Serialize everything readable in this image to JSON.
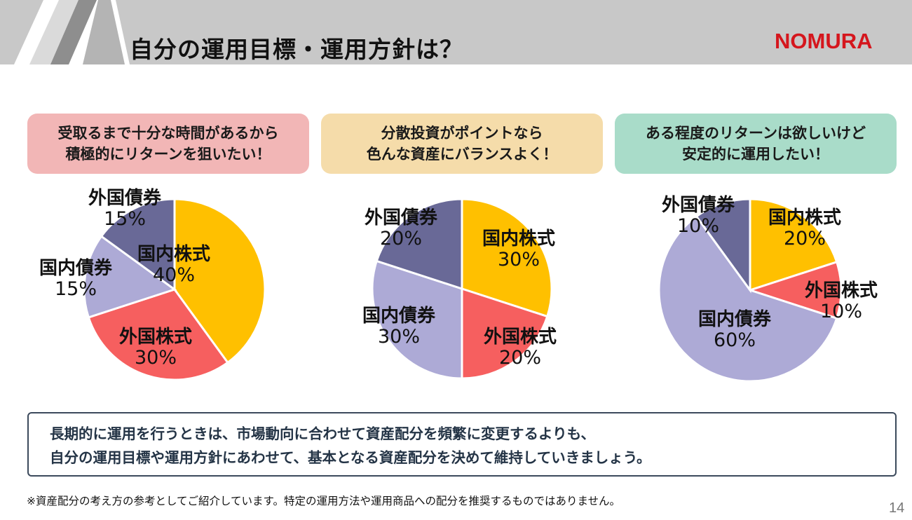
{
  "header": {
    "title": "自分の運用目標・運用方針は？",
    "logo": "NOMURA",
    "logo_color": "#d5161d",
    "bar_color": "#c8c8c8"
  },
  "colors": {
    "domestic_stock": "#ffc000",
    "foreign_stock": "#f65f5f",
    "domestic_bond": "#adaad6",
    "foreign_bond": "#696997"
  },
  "profiles": [
    {
      "line1": "受取るまで十分な時間があるから",
      "line2": "積極的にリターンを狙いたい！",
      "bg": "#f2b6b6",
      "slices": [
        {
          "key": "domestic_stock",
          "name": "国内株式",
          "pct": "40%",
          "value": 40
        },
        {
          "key": "foreign_stock",
          "name": "外国株式",
          "pct": "30%",
          "value": 30
        },
        {
          "key": "domestic_bond",
          "name": "国内債券",
          "pct": "15%",
          "value": 15
        },
        {
          "key": "foreign_bond",
          "name": "外国債券",
          "pct": "15%",
          "value": 15
        }
      ]
    },
    {
      "line1": "分散投資がポイントなら",
      "line2": "色んな資産にバランスよく！",
      "bg": "#f5dcaa",
      "slices": [
        {
          "key": "domestic_stock",
          "name": "国内株式",
          "pct": "30%",
          "value": 30
        },
        {
          "key": "foreign_stock",
          "name": "外国株式",
          "pct": "20%",
          "value": 20
        },
        {
          "key": "domestic_bond",
          "name": "国内債券",
          "pct": "30%",
          "value": 30
        },
        {
          "key": "foreign_bond",
          "name": "外国債券",
          "pct": "20%",
          "value": 20
        }
      ]
    },
    {
      "line1": "ある程度のリターンは欲しいけど",
      "line2": "安定的に運用したい！",
      "bg": "#a9dcc9",
      "slices": [
        {
          "key": "domestic_stock",
          "name": "国内株式",
          "pct": "20%",
          "value": 20
        },
        {
          "key": "foreign_stock",
          "name": "外国株式",
          "pct": "10%",
          "value": 10
        },
        {
          "key": "domestic_bond",
          "name": "国内債券",
          "pct": "60%",
          "value": 60
        },
        {
          "key": "foreign_bond",
          "name": "外国債券",
          "pct": "10%",
          "value": 10
        }
      ]
    }
  ],
  "summary": {
    "line1": "長期的に運用を行うときは、市場動向に合わせて資産配分を頻繁に変更するよりも、",
    "line2": "自分の運用目標や運用方針にあわせて、基本となる資産配分を決めて維持していきましょう。"
  },
  "footnote": "※資産配分の考え方の参考としてご紹介しています。特定の運用方法や運用商品への配分を推奨するものではありません。",
  "page_number": "14"
}
